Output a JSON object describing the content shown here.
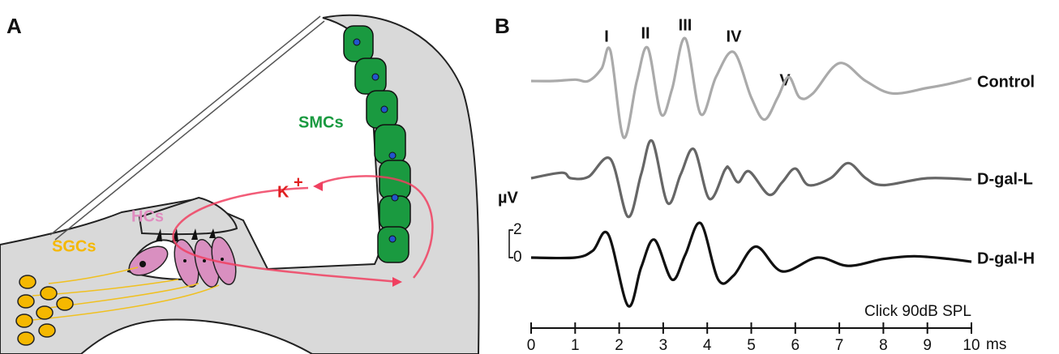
{
  "panel_a": {
    "label": "A",
    "sgcs": "SGCs",
    "hcs": "HCs",
    "smcs": "SMCs",
    "ion": "K",
    "ion_charge": "+"
  },
  "chart_data": {
    "type": "line",
    "label": "B",
    "peak_labels": [
      "I",
      "II",
      "III",
      "IV",
      "V"
    ],
    "ylabel": "µV",
    "yticks": [
      0,
      2
    ],
    "xlabel": "ms",
    "annotation": "Click 90dB SPL",
    "xlim": [
      0,
      10
    ],
    "xticks": [
      0,
      1,
      2,
      3,
      4,
      5,
      6,
      7,
      8,
      9,
      10
    ],
    "series": [
      {
        "name": "Control",
        "color": "#aaaaaa",
        "x": [
          0,
          0.5,
          1.0,
          1.3,
          1.6,
          1.8,
          2.1,
          2.4,
          2.65,
          2.95,
          3.2,
          3.5,
          3.85,
          4.2,
          4.6,
          5.0,
          5.3,
          5.6,
          5.85,
          6.1,
          6.4,
          7.0,
          7.6,
          8.2,
          9.0,
          9.5,
          10
        ],
        "values": [
          0,
          0,
          0.1,
          0,
          0.9,
          2.2,
          -4.1,
          0,
          2.4,
          -2.4,
          -0.6,
          3.1,
          -2.4,
          0.3,
          2.1,
          -1.2,
          -2.8,
          -1.2,
          0.3,
          -1.2,
          -0.9,
          1.3,
          0,
          -0.9,
          -0.5,
          -0.2,
          0.2
        ]
      },
      {
        "name": "D-gal-L",
        "color": "#666666",
        "x": [
          0,
          0.7,
          0.9,
          1.3,
          1.8,
          2.2,
          2.5,
          2.75,
          3.1,
          3.4,
          3.7,
          4.05,
          4.4,
          4.5,
          4.7,
          4.95,
          5.4,
          5.7,
          6.0,
          6.3,
          6.8,
          7.2,
          7.6,
          8.0,
          9.0,
          10
        ],
        "values": [
          0,
          0.4,
          0,
          0.1,
          1.4,
          -2.8,
          0.3,
          2.7,
          -1.8,
          0.3,
          2.1,
          -1.5,
          0.6,
          0.7,
          -0.3,
          0.5,
          -1.2,
          -0.3,
          0.7,
          -0.5,
          0,
          1.1,
          0,
          -0.5,
          0,
          -0.1
        ]
      },
      {
        "name": "D-gal-H",
        "color": "#111111",
        "x": [
          0,
          1.0,
          1.4,
          1.75,
          2.2,
          2.5,
          2.8,
          3.2,
          3.5,
          3.85,
          4.25,
          4.6,
          5.1,
          5.7,
          6.5,
          7.2,
          8.0,
          8.7,
          9.5,
          10
        ],
        "values": [
          0,
          0,
          0.5,
          1.7,
          -3.5,
          -0.7,
          1.3,
          -1.6,
          0.2,
          2.5,
          -1.6,
          -1.3,
          0.8,
          -1.0,
          0,
          -0.6,
          -0.1,
          0.1,
          -0.1,
          -0.3
        ]
      }
    ]
  }
}
